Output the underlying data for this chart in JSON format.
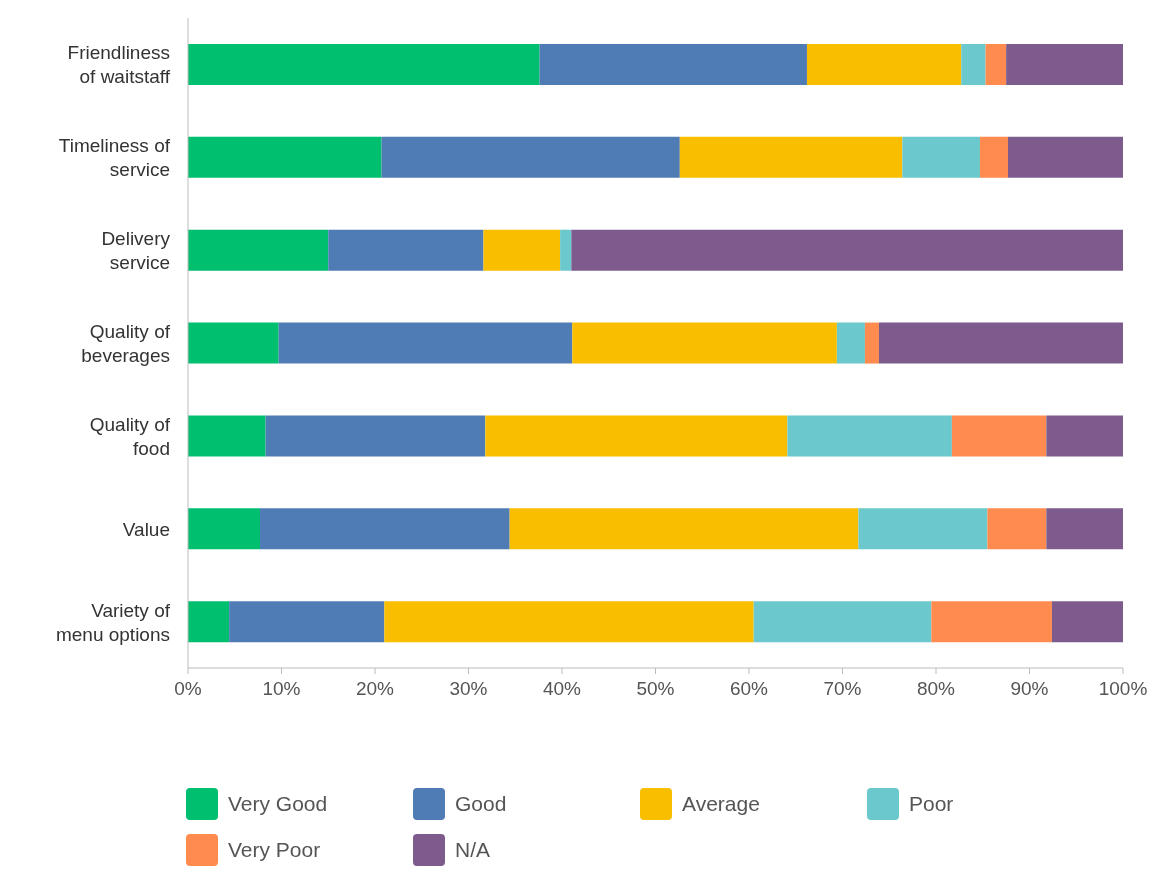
{
  "chart_data": {
    "type": "bar",
    "orientation": "horizontal",
    "stacked": true,
    "categories": [
      "Friendliness of waitstaff",
      "Timeliness of service",
      "Delivery service",
      "Quality of beverages",
      "Quality of food",
      "Value",
      "Variety of menu options"
    ],
    "series": [
      {
        "name": "Very Good",
        "color": "#00bf6f",
        "values": [
          37.6,
          20.7,
          15.0,
          9.7,
          8.3,
          7.7,
          4.4
        ]
      },
      {
        "name": "Good",
        "color": "#507cb6",
        "values": [
          28.6,
          31.9,
          16.6,
          31.4,
          23.5,
          26.7,
          16.6
        ]
      },
      {
        "name": "Average",
        "color": "#f9be00",
        "values": [
          16.5,
          23.8,
          8.2,
          28.3,
          32.3,
          37.3,
          39.5
        ]
      },
      {
        "name": "Poor",
        "color": "#6bc8cd",
        "values": [
          2.6,
          8.3,
          1.2,
          3.0,
          17.6,
          13.8,
          19.0
        ]
      },
      {
        "name": "Very Poor",
        "color": "#ff8b4f",
        "values": [
          2.2,
          3.0,
          0,
          1.5,
          10.1,
          6.3,
          12.9
        ]
      },
      {
        "name": "N/A",
        "color": "#7d5b8c",
        "values": [
          12.5,
          12.3,
          59.0,
          26.1,
          8.2,
          8.2,
          7.6
        ]
      }
    ],
    "xlim": [
      0,
      100
    ],
    "xticks": [
      {
        "value": 0,
        "label": "0%"
      },
      {
        "value": 10,
        "label": "10%"
      },
      {
        "value": 20,
        "label": "20%"
      },
      {
        "value": 30,
        "label": "30%"
      },
      {
        "value": 40,
        "label": "40%"
      },
      {
        "value": 50,
        "label": "50%"
      },
      {
        "value": 60,
        "label": "60%"
      },
      {
        "value": 70,
        "label": "70%"
      },
      {
        "value": 80,
        "label": "80%"
      },
      {
        "value": 90,
        "label": "90%"
      },
      {
        "value": 100,
        "label": "100%"
      }
    ],
    "grid": false,
    "legend": "bottom"
  }
}
